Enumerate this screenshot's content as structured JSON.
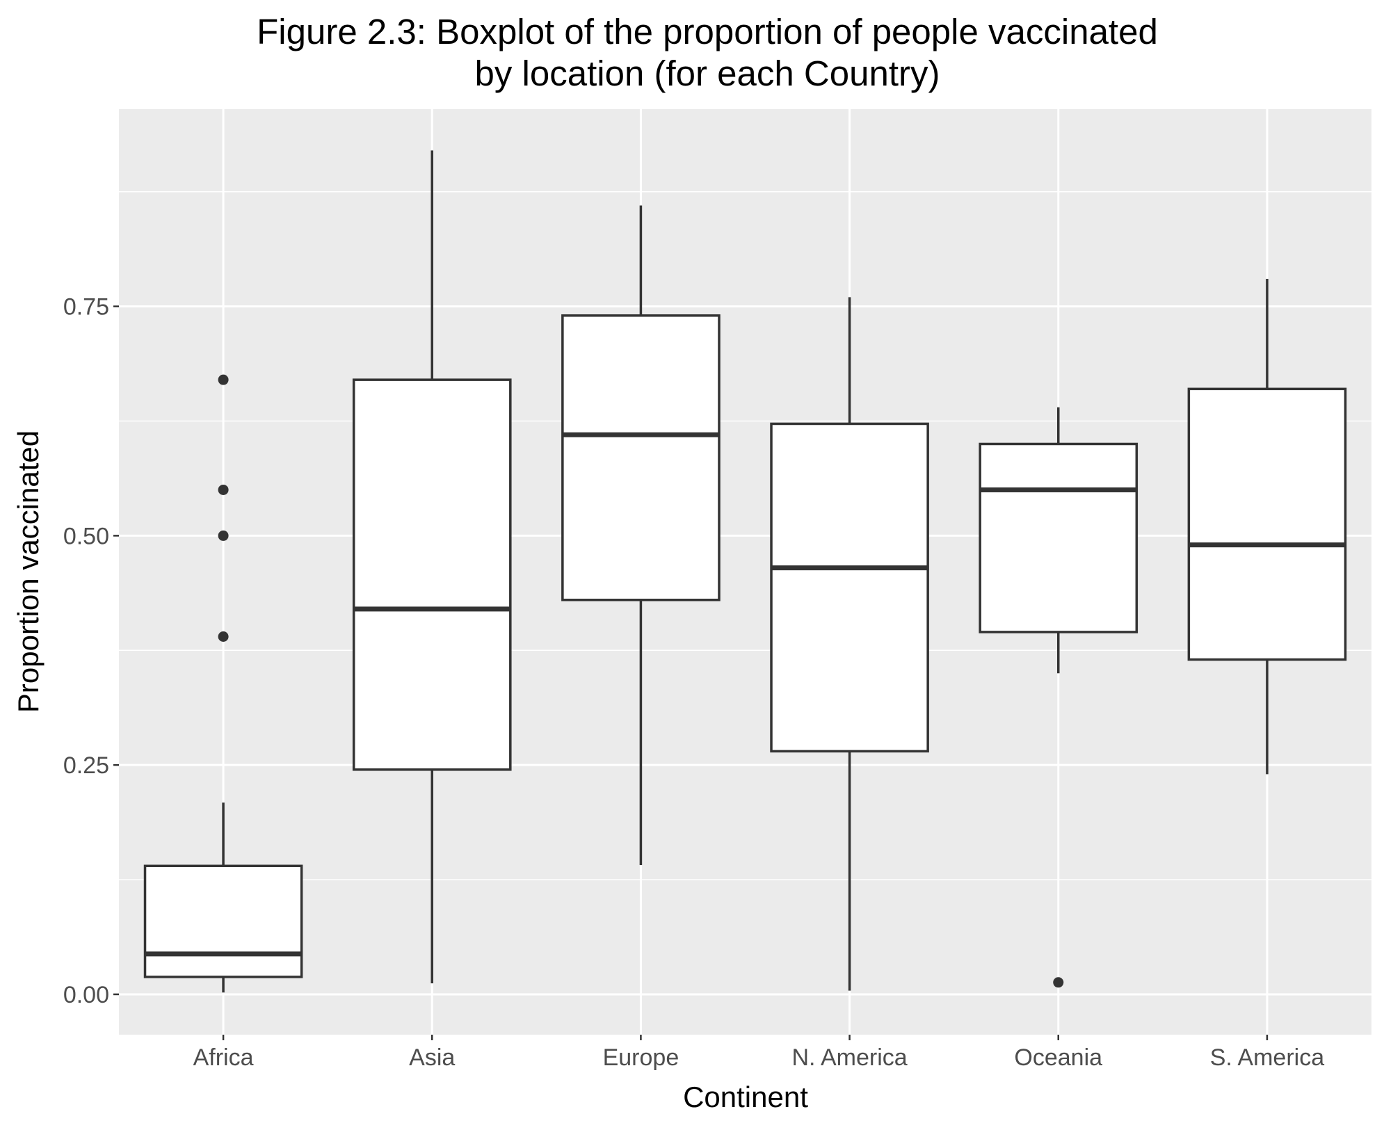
{
  "chart_data": {
    "type": "boxplot",
    "title_lines": [
      "Figure 2.3: Boxplot of the proportion of people vaccinated",
      "by location (for each Country)"
    ],
    "xlabel": "Continent",
    "ylabel": "Proportion vaccinated",
    "ylim": [
      -0.044,
      0.965
    ],
    "y_ticks": [
      0.0,
      0.25,
      0.5,
      0.75
    ],
    "y_tick_labels": [
      "0.00",
      "0.25",
      "0.50",
      "0.75"
    ],
    "grid": true,
    "legend": "none",
    "categories": [
      "Africa",
      "Asia",
      "Europe",
      "N. America",
      "Oceania",
      "S. America"
    ],
    "boxes": [
      {
        "category": "Africa",
        "whisker_low": 0.002,
        "q1": 0.019,
        "median": 0.044,
        "q3": 0.14,
        "whisker_high": 0.209,
        "outliers": [
          0.39,
          0.5,
          0.55,
          0.67
        ]
      },
      {
        "category": "Asia",
        "whisker_low": 0.012,
        "q1": 0.245,
        "median": 0.42,
        "q3": 0.67,
        "whisker_high": 0.92,
        "outliers": []
      },
      {
        "category": "Europe",
        "whisker_low": 0.141,
        "q1": 0.43,
        "median": 0.61,
        "q3": 0.74,
        "whisker_high": 0.86,
        "outliers": []
      },
      {
        "category": "N. America",
        "whisker_low": 0.004,
        "q1": 0.265,
        "median": 0.465,
        "q3": 0.622,
        "whisker_high": 0.76,
        "outliers": []
      },
      {
        "category": "Oceania",
        "whisker_low": 0.35,
        "q1": 0.395,
        "median": 0.55,
        "q3": 0.6,
        "whisker_high": 0.64,
        "outliers": [
          0.013
        ]
      },
      {
        "category": "S. America",
        "whisker_low": 0.24,
        "q1": 0.365,
        "median": 0.49,
        "q3": 0.66,
        "whisker_high": 0.78,
        "outliers": []
      }
    ]
  }
}
